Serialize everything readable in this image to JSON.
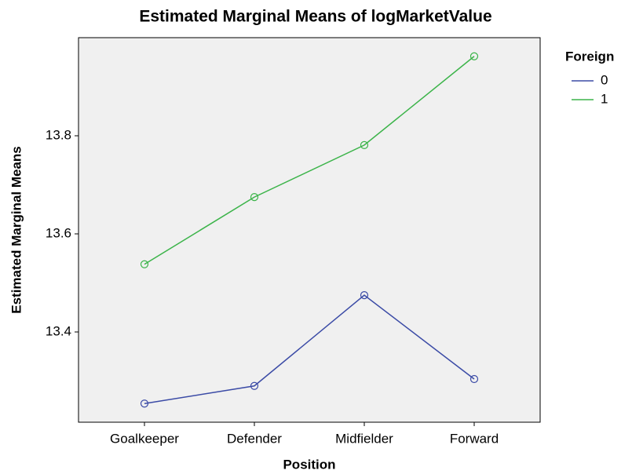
{
  "chart_data": {
    "type": "line",
    "title": "Estimated Marginal Means of logMarketValue",
    "x_label": "Position",
    "y_label": "Estimated Marginal Means",
    "legend_title": "Foreign",
    "legend_position": "right",
    "categories": [
      "Goalkeeper",
      "Defender",
      "Midfielder",
      "Forward"
    ],
    "series": [
      {
        "name": "0",
        "color": "#3b4ba6",
        "values": [
          13.254,
          13.29,
          13.475,
          13.304
        ]
      },
      {
        "name": "1",
        "color": "#3cb44a",
        "values": [
          13.538,
          13.675,
          13.781,
          13.962
        ]
      }
    ],
    "ylim": [
      13.216,
      14.0
    ],
    "yticks": [
      13.4,
      13.6,
      13.8
    ],
    "grid": false
  }
}
